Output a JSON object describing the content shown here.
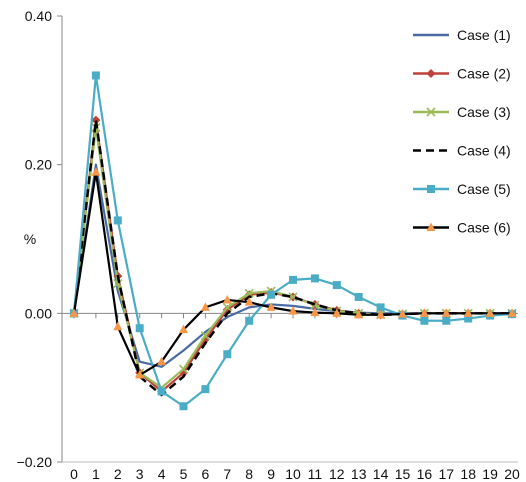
{
  "chart_data": {
    "type": "line",
    "ylabel": "%",
    "xlim": [
      0,
      20
    ],
    "ylim": [
      -0.2,
      0.4
    ],
    "x": [
      0,
      1,
      2,
      3,
      4,
      5,
      6,
      7,
      8,
      9,
      10,
      11,
      12,
      13,
      14,
      15,
      16,
      17,
      18,
      19,
      20
    ],
    "x_tick_labels": [
      "0",
      "1",
      "2",
      "3",
      "4",
      "5",
      "6",
      "7",
      "8",
      "9",
      "10",
      "11",
      "12",
      "13",
      "14",
      "15",
      "16",
      "17",
      "18",
      "19",
      "20"
    ],
    "y_ticks": [
      0.4,
      0.2,
      0.0,
      -0.2
    ],
    "y_tick_labels": [
      "0.40",
      "0.20",
      "0.00",
      "−0.20"
    ],
    "grid": false,
    "legend_position": "right",
    "series": [
      {
        "name": "Case (1)",
        "color": "#4a6aa5",
        "marker": "none",
        "dash": "solid",
        "values": [
          0.0,
          0.2,
          0.03,
          -0.065,
          -0.072,
          -0.05,
          -0.025,
          -0.005,
          0.008,
          0.012,
          0.01,
          0.006,
          0.003,
          0.001,
          0.0,
          0.0,
          0.0,
          0.0,
          0.0,
          0.0,
          0.0
        ]
      },
      {
        "name": "Case (2)",
        "color": "#c0403a",
        "marker": "diamond",
        "dash": "solid",
        "values": [
          0.0,
          0.26,
          0.05,
          -0.08,
          -0.105,
          -0.08,
          -0.035,
          0.005,
          0.025,
          0.028,
          0.022,
          0.012,
          0.004,
          0.0,
          -0.002,
          -0.001,
          0.0,
          0.0,
          0.0,
          0.0,
          0.0
        ]
      },
      {
        "name": "Case (3)",
        "color": "#9bbb59",
        "marker": "x",
        "dash": "solid",
        "values": [
          0.0,
          0.25,
          0.04,
          -0.08,
          -0.1,
          -0.075,
          -0.03,
          0.008,
          0.027,
          0.03,
          0.022,
          0.011,
          0.003,
          0.0,
          -0.002,
          -0.001,
          0.0,
          0.0,
          0.0,
          0.0,
          0.0
        ]
      },
      {
        "name": "Case (4)",
        "color": "#000000",
        "marker": "none",
        "dash": "dashed",
        "values": [
          0.0,
          0.26,
          0.05,
          -0.085,
          -0.11,
          -0.085,
          -0.04,
          0.0,
          0.022,
          0.027,
          0.022,
          0.012,
          0.004,
          0.0,
          -0.002,
          -0.001,
          0.0,
          0.0,
          0.0,
          0.0,
          0.0
        ]
      },
      {
        "name": "Case (5)",
        "color": "#4bacc6",
        "marker": "square",
        "dash": "solid",
        "values": [
          0.0,
          0.32,
          0.125,
          -0.02,
          -0.105,
          -0.125,
          -0.102,
          -0.055,
          -0.01,
          0.025,
          0.045,
          0.047,
          0.038,
          0.022,
          0.008,
          -0.003,
          -0.01,
          -0.01,
          -0.007,
          -0.003,
          -0.001
        ]
      },
      {
        "name": "Case (6)",
        "color": "#f79646",
        "line_color": "#000000",
        "marker": "triangle",
        "dash": "solid",
        "values": [
          0.0,
          0.19,
          -0.018,
          -0.083,
          -0.065,
          -0.022,
          0.008,
          0.018,
          0.015,
          0.008,
          0.003,
          0.001,
          0.0,
          -0.002,
          -0.002,
          -0.001,
          0.0,
          0.0,
          0.0,
          0.0,
          0.0
        ]
      }
    ]
  }
}
